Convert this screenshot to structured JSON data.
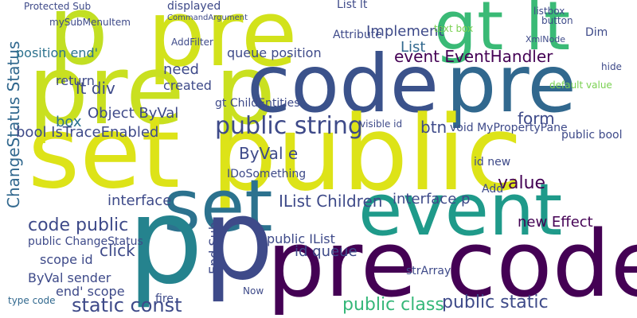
{
  "words": [
    "p",
    "pre",
    "gt lt",
    "pre p",
    "code",
    "pre",
    "set",
    "public",
    "set",
    "event",
    "p",
    "p",
    "pre code",
    "public string",
    "ChangeStatus Status",
    "Protected Sub",
    "mySubMenuItem",
    "lt div",
    "position end'",
    "Object ByVal",
    "bool IsTraceEnabled",
    "box",
    "need",
    "created",
    "queue position",
    "Implement",
    "List",
    "event EventHandler",
    "listbox",
    "button",
    "XmlNode",
    "Dim",
    "hide",
    "default value",
    "public bool",
    "form",
    "btn",
    "void MyPropertyPane",
    "visible id",
    "gt ChildEntities",
    "ByVal e",
    "interface",
    "IList Children",
    "interface p",
    "value",
    "new Effect",
    "code public",
    "public ChangeStatus",
    "scope id",
    "ByVal sender",
    "end' scope",
    "type code",
    "click",
    "static const",
    "id queue",
    "public IList",
    "public class",
    "public static",
    "strArray",
    "IDoSomething",
    "End Sub",
    "Now",
    "fire",
    "text box",
    "Attribute",
    "List lt",
    "displayed",
    "CommandArgument",
    "AddFilter",
    "id new",
    "Add",
    "return"
  ]
}
